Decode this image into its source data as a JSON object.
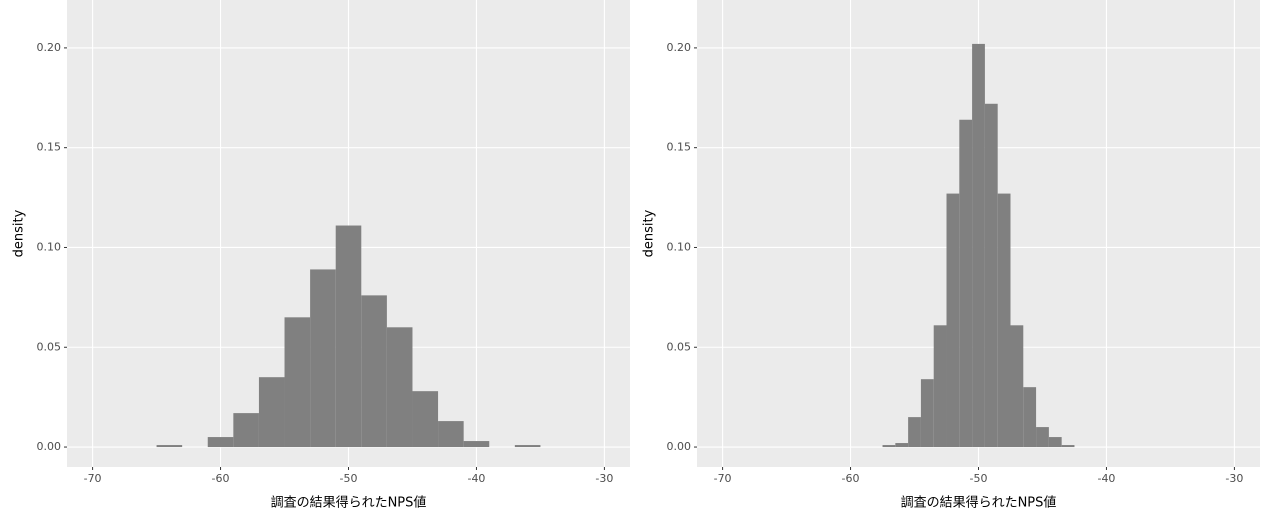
{
  "chart_data": [
    {
      "type": "histogram",
      "x_label": "調査の結果得られたNPS値",
      "y_label": "density",
      "color": "#808080",
      "grid": true,
      "bins": [
        -65,
        -63,
        -61,
        -59,
        -57,
        -55,
        -53,
        -51,
        -49,
        -47,
        -45,
        -43,
        -41,
        -39,
        -37,
        -35
      ],
      "values": [
        0.001,
        0,
        0.005,
        0.017,
        0.035,
        0.065,
        0.089,
        0.111,
        0.076,
        0.06,
        0.028,
        0.013,
        0.003,
        0,
        0.001
      ],
      "xlim": [
        -72,
        -28
      ],
      "ylim": [
        -0.01,
        0.224
      ],
      "xticks": [
        -70,
        -60,
        -50,
        -40,
        -30
      ],
      "yticks": [
        {
          "value": 0,
          "label": "0.00"
        },
        {
          "value": 0.05,
          "label": "0.05"
        },
        {
          "value": 0.1,
          "label": "0.10"
        },
        {
          "value": 0.15,
          "label": "0.15"
        },
        {
          "value": 0.2,
          "label": "0.20"
        }
      ]
    },
    {
      "type": "histogram",
      "x_label": "調査の結果得られたNPS値",
      "y_label": "density",
      "color": "#808080",
      "grid": true,
      "bins": [
        -57.5,
        -56.5,
        -55.5,
        -54.5,
        -53.5,
        -52.5,
        -51.5,
        -50.5,
        -49.5,
        -48.5,
        -47.5,
        -46.5,
        -45.5,
        -44.5,
        -43.5,
        -42.5
      ],
      "values": [
        0.001,
        0.002,
        0.015,
        0.034,
        0.061,
        0.127,
        0.164,
        0.202,
        0.172,
        0.127,
        0.061,
        0.03,
        0.01,
        0.005,
        0.001
      ],
      "xlim": [
        -72,
        -28
      ],
      "ylim": [
        -0.01,
        0.224
      ],
      "xticks": [
        -70,
        -60,
        -50,
        -40,
        -30
      ],
      "yticks": [
        {
          "value": 0,
          "label": "0.00"
        },
        {
          "value": 0.05,
          "label": "0.05"
        },
        {
          "value": 0.1,
          "label": "0.10"
        },
        {
          "value": 0.15,
          "label": "0.15"
        },
        {
          "value": 0.2,
          "label": "0.20"
        }
      ]
    }
  ]
}
